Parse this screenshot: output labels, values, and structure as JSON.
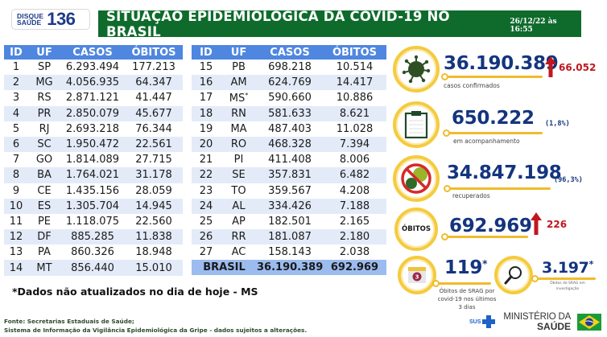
{
  "header": {
    "logo": {
      "top": "DISQUE",
      "bottom": "SAÚDE",
      "number": "136"
    },
    "title": "SITUAÇÃO EPIDEMIOLÓGICA DA COVID-19 NO BRASIL",
    "datetime": "26/12/22 às 16:55"
  },
  "table": {
    "columns": [
      "ID",
      "UF",
      "CASOS",
      "ÓBITOS"
    ],
    "left": [
      {
        "id": "1",
        "uf": "SP",
        "casos": "6.293.494",
        "obitos": "177.213"
      },
      {
        "id": "2",
        "uf": "MG",
        "casos": "4.056.935",
        "obitos": "64.347"
      },
      {
        "id": "3",
        "uf": "RS",
        "casos": "2.871.121",
        "obitos": "41.447"
      },
      {
        "id": "4",
        "uf": "PR",
        "casos": "2.850.079",
        "obitos": "45.677"
      },
      {
        "id": "5",
        "uf": "RJ",
        "casos": "2.693.218",
        "obitos": "76.344"
      },
      {
        "id": "6",
        "uf": "SC",
        "casos": "1.950.472",
        "obitos": "22.561"
      },
      {
        "id": "7",
        "uf": "GO",
        "casos": "1.814.089",
        "obitos": "27.715"
      },
      {
        "id": "8",
        "uf": "BA",
        "casos": "1.764.021",
        "obitos": "31.178"
      },
      {
        "id": "9",
        "uf": "CE",
        "casos": "1.435.156",
        "obitos": "28.059"
      },
      {
        "id": "10",
        "uf": "ES",
        "casos": "1.305.704",
        "obitos": "14.945"
      },
      {
        "id": "11",
        "uf": "PE",
        "casos": "1.118.075",
        "obitos": "22.560"
      },
      {
        "id": "12",
        "uf": "DF",
        "casos": "885.285",
        "obitos": "11.838"
      },
      {
        "id": "13",
        "uf": "PA",
        "casos": "860.326",
        "obitos": "18.948"
      },
      {
        "id": "14",
        "uf": "MT",
        "casos": "856.440",
        "obitos": "15.010"
      }
    ],
    "right": [
      {
        "id": "15",
        "uf": "PB",
        "casos": "698.218",
        "obitos": "10.514"
      },
      {
        "id": "16",
        "uf": "AM",
        "casos": "624.769",
        "obitos": "14.417"
      },
      {
        "id": "17",
        "uf": "MS",
        "asterisk": "*",
        "casos": "590.660",
        "obitos": "10.886"
      },
      {
        "id": "18",
        "uf": "RN",
        "casos": "581.633",
        "obitos": "8.621"
      },
      {
        "id": "19",
        "uf": "MA",
        "casos": "487.403",
        "obitos": "11.028"
      },
      {
        "id": "20",
        "uf": "RO",
        "casos": "468.328",
        "obitos": "7.394"
      },
      {
        "id": "21",
        "uf": "PI",
        "casos": "411.408",
        "obitos": "8.006"
      },
      {
        "id": "22",
        "uf": "SE",
        "casos": "357.831",
        "obitos": "6.482"
      },
      {
        "id": "23",
        "uf": "TO",
        "casos": "359.567",
        "obitos": "4.208"
      },
      {
        "id": "24",
        "uf": "AL",
        "casos": "334.426",
        "obitos": "7.188"
      },
      {
        "id": "25",
        "uf": "AP",
        "casos": "182.501",
        "obitos": "2.165"
      },
      {
        "id": "26",
        "uf": "RR",
        "casos": "181.087",
        "obitos": "2.180"
      },
      {
        "id": "27",
        "uf": "AC",
        "casos": "158.143",
        "obitos": "2.038"
      }
    ],
    "total": {
      "label": "BRASIL",
      "casos": "36.190.389",
      "obitos": "692.969"
    }
  },
  "note": "*Dados não atualizados no dia de hoje - MS",
  "source": {
    "line1": "Fonte: Secretarias Estaduais de Saúde;",
    "line2": "Sistema de Informação da Vigilância Epidemiológica da Gripe - dados sujeitos a alterações."
  },
  "stats": {
    "confirmed": {
      "value": "36.190.389",
      "delta": "66.052",
      "label": "casos confirmados",
      "icon": "virus-icon"
    },
    "monitoring": {
      "value": "650.222",
      "pct": "(1,8%)",
      "label": "em acompanhamento",
      "icon": "clipboard-icon"
    },
    "recovered": {
      "value": "34.847.198",
      "pct": "(96,3%)",
      "label": "recuperados",
      "icon": "no-virus-icon"
    },
    "deaths": {
      "badge": "ÓBITOS",
      "value": "692.969",
      "delta": "226"
    },
    "srag": {
      "value": "119",
      "asterisk": "*",
      "calendar_day": "3",
      "label_lines": [
        "Óbitos de SRAG por",
        "covid-19 nos últimos",
        "3 dias"
      ]
    },
    "srag_investigation": {
      "value": "3.197",
      "asterisk": "*",
      "label_lines": [
        "Óbitos de SRAG em",
        "investigação"
      ]
    }
  },
  "footer": {
    "sus": "SUS",
    "ministry_line1": "MINISTÉRIO DA",
    "ministry_line2": "SAÚDE"
  },
  "colors": {
    "title_green": "#0f6b2c",
    "header_blue": "#4f86e0",
    "row_alt": "#e4ebf8",
    "total_row": "#9cbcf0",
    "number_navy": "#14357e",
    "delta_red": "#c0171f",
    "ring_yellow": "#f5cb3d"
  }
}
